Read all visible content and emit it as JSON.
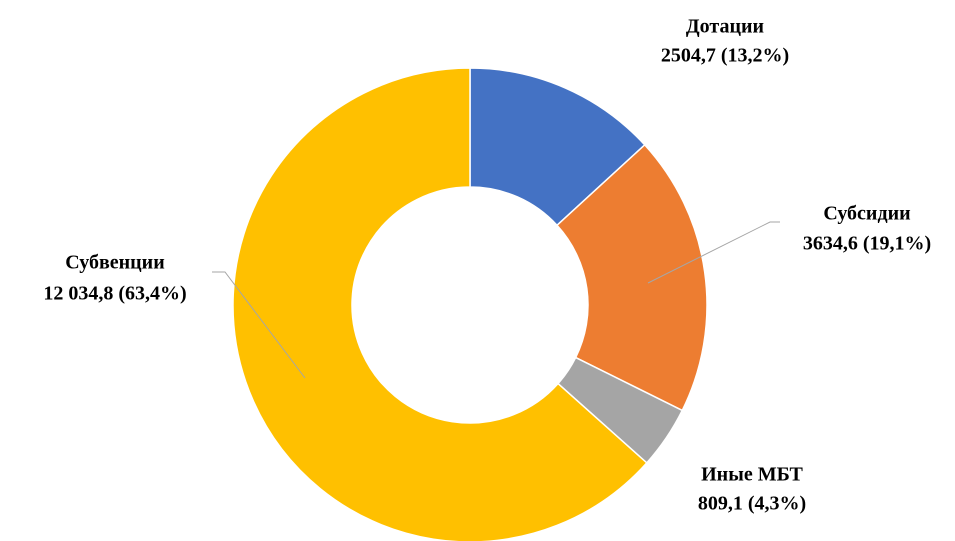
{
  "chart_data": {
    "type": "donut",
    "categories": [
      "Дотации",
      "Субсидии",
      "Иные МБТ",
      "Субвенции"
    ],
    "values": [
      2504.7,
      3634.6,
      809.1,
      12034.8
    ],
    "value_labels": [
      "2504,7 (13,2%)",
      "3634,6 (19,1%)",
      "809,1 (4,3%)",
      "12 034,8 (63,4%)"
    ],
    "colors": [
      "#4472c4",
      "#ed7d31",
      "#a5a5a5",
      "#ffc000"
    ]
  }
}
